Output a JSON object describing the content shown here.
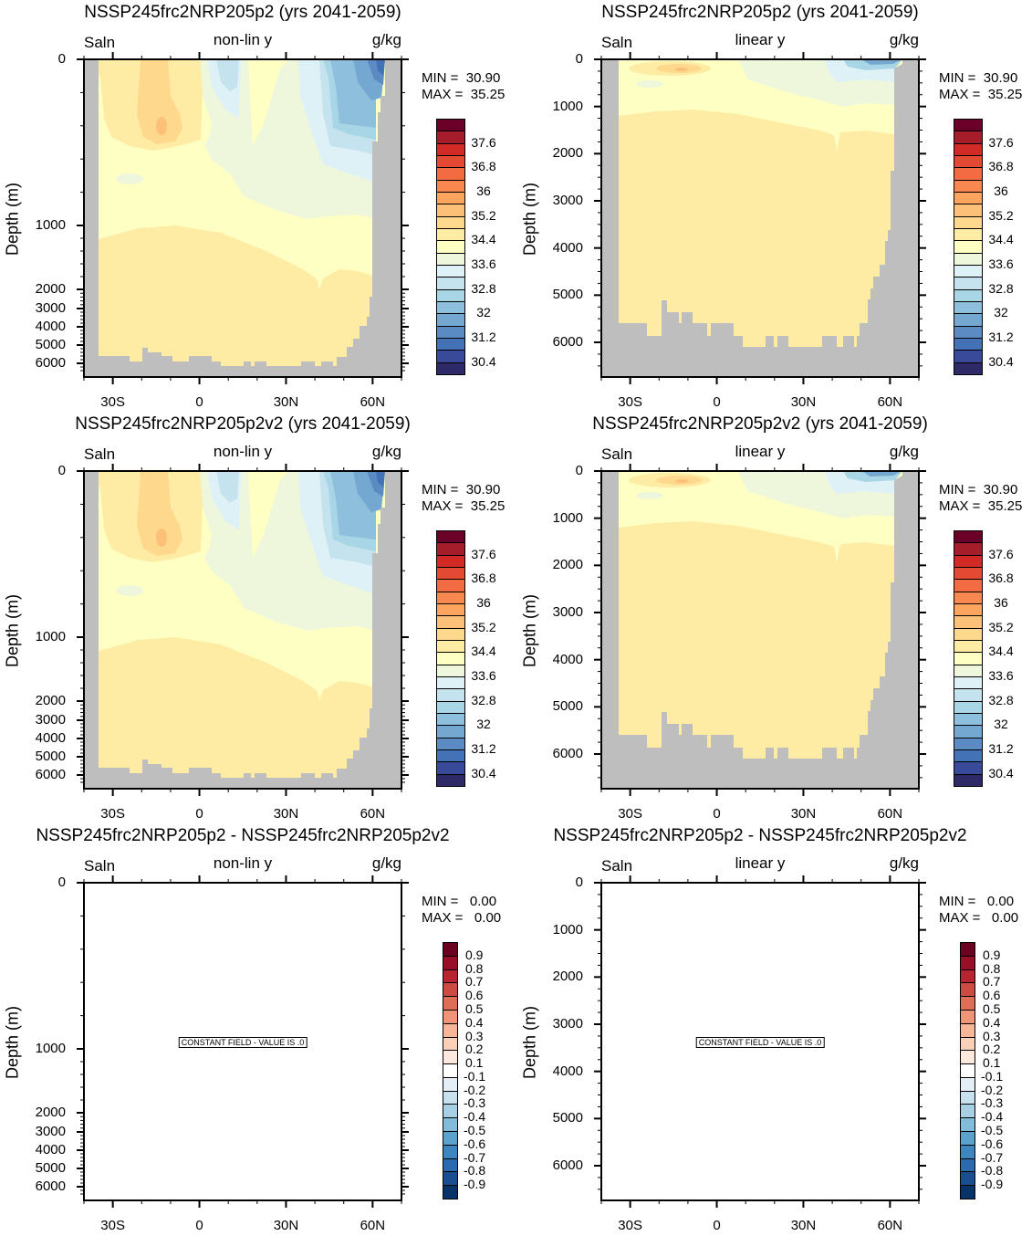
{
  "colors": {
    "land": "#bebebe",
    "salinity_levels_colors": [
      "#2e2a68",
      "#3a4a9a",
      "#4472b6",
      "#5b8bc2",
      "#74a8d0",
      "#8ebfdc",
      "#a8d6e6",
      "#c4e3ee",
      "#def1f7",
      "#eef7dc",
      "#feffc3",
      "#feeca4",
      "#fed88c",
      "#fdc078",
      "#fda55e",
      "#f98850",
      "#f26b43",
      "#e44a33",
      "#d22b27",
      "#a51c2a",
      "#6b0028"
    ],
    "diff_levels_colors": [
      "#083369",
      "#1a4f8f",
      "#2c6ab0",
      "#3e86bf",
      "#5ba2cd",
      "#81bcdb",
      "#a8d0e5",
      "#c8e1ef",
      "#e3eef6",
      "#ffffff",
      "#fde8dd",
      "#fbd0b9",
      "#f7b698",
      "#f09577",
      "#de6f56",
      "#cc4c44",
      "#b8242f",
      "#981027",
      "#6a0220"
    ]
  },
  "salinity_colorbar_labels": [
    "37.6",
    "36.8",
    "36",
    "35.2",
    "34.4",
    "33.6",
    "32.8",
    "32",
    "31.2",
    "30.4"
  ],
  "diff_colorbar_labels": [
    "0.9",
    "0.8",
    "0.7",
    "0.6",
    "0.5",
    "0.4",
    "0.3",
    "0.2",
    "0.1",
    "-0.1",
    "-0.2",
    "-0.3",
    "-0.4",
    "-0.5",
    "-0.6",
    "-0.7",
    "-0.8",
    "-0.9"
  ],
  "chart_data": [
    {
      "type": "heatmap",
      "title": "NSSP245frc2NRP205p2 (yrs 2041-2059)",
      "left_label": "Saln",
      "center_label": "non-lin y",
      "units": "g/kg",
      "ylabel": "Depth (m)",
      "y_scale": "nonlinear",
      "min_text": "MIN =  30.90",
      "max_text": "MAX =  35.25",
      "min": 30.9,
      "max": 35.25,
      "yticks": [
        "0",
        "1000",
        "2000",
        "3000",
        "4000",
        "5000",
        "6000"
      ],
      "ytick_values": [
        0,
        1000,
        2000,
        3000,
        4000,
        5000,
        6000
      ],
      "xticks": [
        "30S",
        "0",
        "30N",
        "60N"
      ],
      "xtick_values": [
        -30,
        0,
        30,
        60
      ],
      "xlim": [
        -40,
        70
      ],
      "levels": [
        30.4,
        38.0,
        0.4
      ],
      "colorbar": "salinity",
      "constant_field": false
    },
    {
      "type": "heatmap",
      "title": "NSSP245frc2NRP205p2 (yrs 2041-2059)",
      "left_label": "Saln",
      "center_label": "linear y",
      "units": "g/kg",
      "ylabel": "Depth (m)",
      "y_scale": "linear",
      "min_text": "MIN =  30.90",
      "max_text": "MAX =  35.25",
      "min": 30.9,
      "max": 35.25,
      "yticks": [
        "0",
        "1000",
        "2000",
        "3000",
        "4000",
        "5000",
        "6000"
      ],
      "ytick_values": [
        0,
        1000,
        2000,
        3000,
        4000,
        5000,
        6000
      ],
      "xticks": [
        "30S",
        "0",
        "30N",
        "60N"
      ],
      "xtick_values": [
        -30,
        0,
        30,
        60
      ],
      "xlim": [
        -40,
        70
      ],
      "levels": [
        30.4,
        38.0,
        0.4
      ],
      "colorbar": "salinity",
      "constant_field": false
    },
    {
      "type": "heatmap",
      "title": "NSSP245frc2NRP205p2v2 (yrs 2041-2059)",
      "left_label": "Saln",
      "center_label": "non-lin y",
      "units": "g/kg",
      "ylabel": "Depth (m)",
      "y_scale": "nonlinear",
      "min_text": "MIN =  30.90",
      "max_text": "MAX =  35.25",
      "min": 30.9,
      "max": 35.25,
      "yticks": [
        "0",
        "1000",
        "2000",
        "3000",
        "4000",
        "5000",
        "6000"
      ],
      "ytick_values": [
        0,
        1000,
        2000,
        3000,
        4000,
        5000,
        6000
      ],
      "xticks": [
        "30S",
        "0",
        "30N",
        "60N"
      ],
      "xtick_values": [
        -30,
        0,
        30,
        60
      ],
      "xlim": [
        -40,
        70
      ],
      "levels": [
        30.4,
        38.0,
        0.4
      ],
      "colorbar": "salinity",
      "constant_field": false
    },
    {
      "type": "heatmap",
      "title": "NSSP245frc2NRP205p2v2 (yrs 2041-2059)",
      "left_label": "Saln",
      "center_label": "linear y",
      "units": "g/kg",
      "ylabel": "Depth (m)",
      "y_scale": "linear",
      "min_text": "MIN =  30.90",
      "max_text": "MAX =  35.25",
      "min": 30.9,
      "max": 35.25,
      "yticks": [
        "0",
        "1000",
        "2000",
        "3000",
        "4000",
        "5000",
        "6000"
      ],
      "ytick_values": [
        0,
        1000,
        2000,
        3000,
        4000,
        5000,
        6000
      ],
      "xticks": [
        "30S",
        "0",
        "30N",
        "60N"
      ],
      "xtick_values": [
        -30,
        0,
        30,
        60
      ],
      "xlim": [
        -40,
        70
      ],
      "levels": [
        30.4,
        38.0,
        0.4
      ],
      "colorbar": "salinity",
      "constant_field": false
    },
    {
      "type": "heatmap",
      "title": "NSSP245frc2NRP205p2 - NSSP245frc2NRP205p2v2",
      "left_label": "Saln",
      "center_label": "non-lin y",
      "units": "g/kg",
      "ylabel": "Depth (m)",
      "y_scale": "nonlinear",
      "min_text": "MIN =   0.00",
      "max_text": "MAX =   0.00",
      "min": 0.0,
      "max": 0.0,
      "yticks": [
        "0",
        "1000",
        "2000",
        "3000",
        "4000",
        "5000",
        "6000"
      ],
      "ytick_values": [
        0,
        1000,
        2000,
        3000,
        4000,
        5000,
        6000
      ],
      "xticks": [
        "30S",
        "0",
        "30N",
        "60N"
      ],
      "xtick_values": [
        -30,
        0,
        30,
        60
      ],
      "xlim": [
        -40,
        70
      ],
      "levels": [
        -0.9,
        0.9,
        0.1
      ],
      "colorbar": "diff",
      "constant_field": true,
      "note": "CONSTANT FIELD - VALUE IS .0"
    },
    {
      "type": "heatmap",
      "title": "NSSP245frc2NRP205p2 - NSSP245frc2NRP205p2v2",
      "left_label": "Saln",
      "center_label": "linear y",
      "units": "g/kg",
      "ylabel": "Depth (m)",
      "y_scale": "linear",
      "min_text": "MIN =   0.00",
      "max_text": "MAX =   0.00",
      "min": 0.0,
      "max": 0.0,
      "yticks": [
        "0",
        "1000",
        "2000",
        "3000",
        "4000",
        "5000",
        "6000"
      ],
      "ytick_values": [
        0,
        1000,
        2000,
        3000,
        4000,
        5000,
        6000
      ],
      "xticks": [
        "30S",
        "0",
        "30N",
        "60N"
      ],
      "xtick_values": [
        -30,
        0,
        30,
        60
      ],
      "xlim": [
        -40,
        70
      ],
      "levels": [
        -0.9,
        0.9,
        0.1
      ],
      "colorbar": "diff",
      "constant_field": true,
      "note": "CONSTANT FIELD - VALUE IS .0"
    }
  ]
}
